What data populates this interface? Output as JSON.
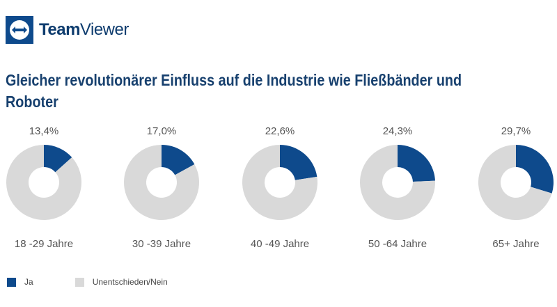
{
  "brand": {
    "logo_bold": "Team",
    "logo_light": "Viewer"
  },
  "chart_data": {
    "type": "pie",
    "variant": "donut",
    "title": "Gleicher revolutionärer Einfluss auf die Industrie wie Fließbänder und Roboter",
    "categories": [
      "18 -29 Jahre",
      "30 -39 Jahre",
      "40 -49 Jahre",
      "50 -64 Jahre",
      "65+ Jahre"
    ],
    "series": [
      {
        "name": "Ja",
        "values": [
          13.4,
          17.0,
          22.6,
          24.3,
          29.7
        ],
        "color": "#0e4a8c"
      },
      {
        "name": "Unentschieden/Nein",
        "values": [
          86.6,
          83.0,
          77.4,
          75.7,
          70.3
        ],
        "color": "#d9d9d9"
      }
    ],
    "data_labels": [
      "13,4%",
      "17,0%",
      "22,6%",
      "24,3%",
      "29,7%"
    ],
    "legend": "bottom-left"
  }
}
